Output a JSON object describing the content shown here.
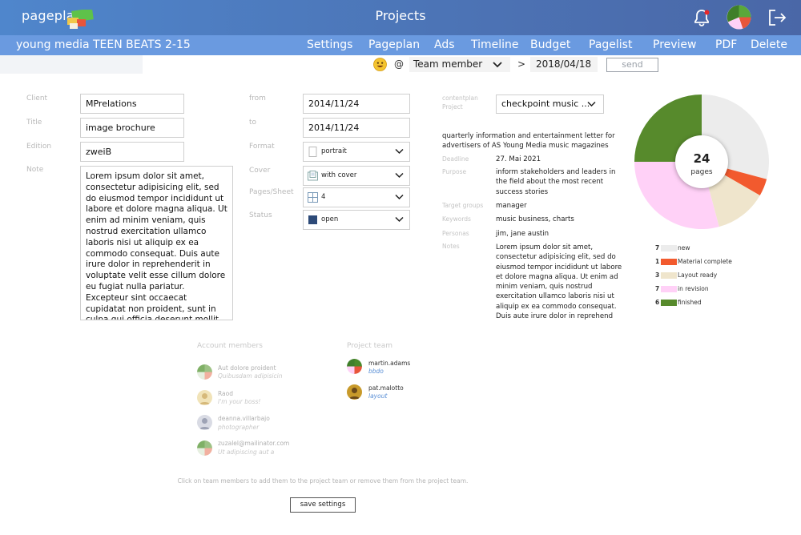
{
  "header": {
    "logo_text": "pageplanr",
    "title": "Projects",
    "icons": [
      "bell-icon",
      "account-pie-icon",
      "logout-icon"
    ]
  },
  "subnav": {
    "project_name": "young media TEEN BEATS 2-15",
    "tabs": [
      "Settings",
      "Pageplan",
      "Ads",
      "Timeline",
      "Budget",
      "Pagelist",
      "Preview",
      "PDF",
      "Delete"
    ]
  },
  "filter": {
    "at": "@",
    "member_select": "Team member",
    "gt": ">",
    "date": "2018/04/18",
    "send": "send"
  },
  "form": {
    "client_label": "Client",
    "client_value": "MPrelations",
    "title_label": "Title",
    "title_value": "image brochure",
    "edition_label": "Edition",
    "edition_value": "zweiB",
    "note_label": "Note",
    "note_value": "Lorem ipsum dolor sit amet, consectetur adipisicing elit, sed do eiusmod tempor incididunt ut labore et dolore magna aliqua. Ut enim ad minim veniam, quis nostrud exercitation ullamco laboris nisi ut aliquip ex ea commodo consequat. Duis aute irure dolor in reprehenderit in voluptate velit esse cillum dolore eu fugiat nulla pariatur. Excepteur sint occaecat cupidatat non proident, sunt in culpa qui officia deserunt mollit anim id est laborum.",
    "from_label": "from",
    "from_value": "2014/11/24",
    "to_label": "to",
    "to_value": "2014/11/24",
    "format_label": "Format",
    "format_value": "portrait",
    "cover_label": "Cover",
    "cover_value": "with cover",
    "pages_label": "Pages/Sheet",
    "pages_value": "4",
    "status_label": "Status",
    "status_value": "open",
    "status_color": "#2d4a78"
  },
  "contentplan": {
    "label_line1": "contentplan",
    "label_line2": "Project",
    "selected": "checkpoint music ...",
    "description": "quarterly information and entertainment letter for advertisers of AS Young Media music magazines",
    "deadline_label": "Deadline",
    "deadline_value": "27. Mai 2021",
    "purpose_label": "Purpose",
    "purpose_value": "inform stakeholders and leaders in the field about the most recent success stories",
    "target_label": "Target groups",
    "target_value": "manager",
    "keywords_label": "Keywords",
    "keywords_value": "music business, charts",
    "personas_label": "Personas",
    "personas_value": "jim, jane austin",
    "notes_label": "Notes",
    "notes_value": "Lorem ipsum dolor sit amet, consectetur adipisicing elit, sed do eiusmod tempor incididunt ut labore et dolore magna aliqua. Ut enim ad minim veniam, quis nostrud exercitation ullamco laboris nisi ut aliquip ex ea commodo consequat. Duis aute irure dolor in reprehend"
  },
  "chart_data": {
    "type": "pie",
    "center_value": "24",
    "center_label": "pages",
    "series": [
      {
        "name": "new",
        "value": 7,
        "color": "#ececec"
      },
      {
        "name": "Material complete",
        "value": 1,
        "color": "#f25a2e"
      },
      {
        "name": "Layout ready",
        "value": 3,
        "color": "#efe5cc"
      },
      {
        "name": "in revision",
        "value": 7,
        "color": "#ffd1f7"
      },
      {
        "name": "finished",
        "value": 6,
        "color": "#578a2c"
      }
    ]
  },
  "members": {
    "account_title": "Account members",
    "account": [
      {
        "name": "Aut dolore proident",
        "role": "Quibusdam adipisicin"
      },
      {
        "name": "Raod",
        "role": "I'm your boss!"
      },
      {
        "name": "deanna.villarbajo",
        "role": "photographer"
      },
      {
        "name": "zuzalel@mailinator.com",
        "role": "Ut adipiscing aut a"
      }
    ],
    "team_title": "Project team",
    "team": [
      {
        "name": "martin.adams",
        "role": "bbdo"
      },
      {
        "name": "pat.malotto",
        "role": "layout"
      }
    ],
    "hint": "Click on team members to add them to the project team or remove them from the project team."
  },
  "actions": {
    "save": "save settings"
  }
}
